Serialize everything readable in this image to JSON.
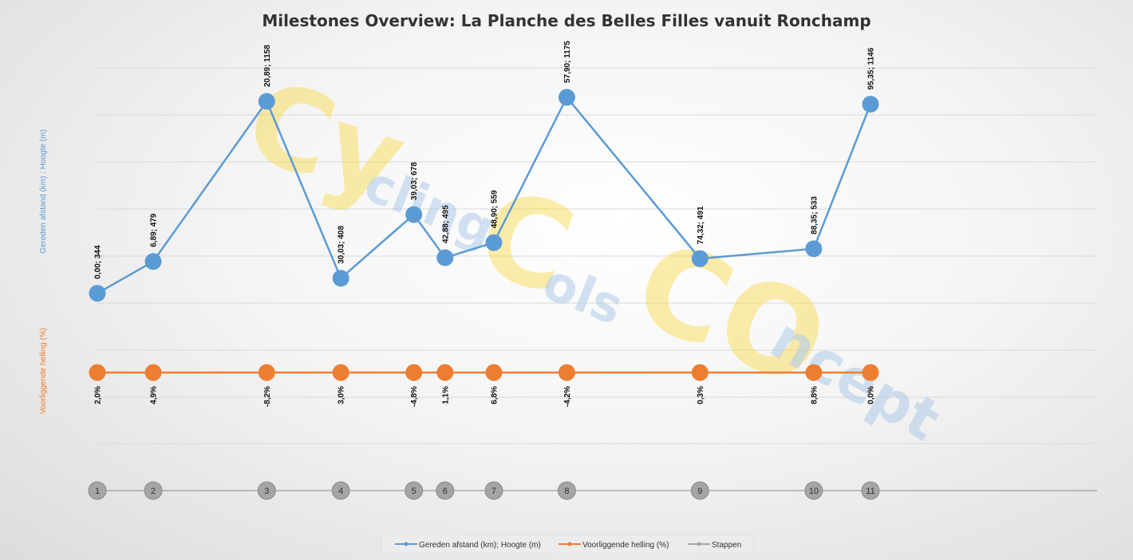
{
  "colors": {
    "elevation": "#5b9bd5",
    "gradient": "#ed7d31",
    "steps": "#a5a5a5",
    "grid": "#d9d9d9",
    "watermark_yellow": "#f7d84a",
    "watermark_blue": "#a7c6e6"
  },
  "watermark": {
    "line1": "Cy",
    "line2": "cling",
    "line3": "C",
    "line4": "ols",
    "line5": "CO",
    "line6": "ncept"
  },
  "chart_data": {
    "type": "line",
    "title": "Milestones Overview: La Planche des Belles Filles vanuit Ronchamp",
    "y_axis_label_left_top": "Gereden afstand (km) ;  Hoogte (m)",
    "y_axis_label_left_bottom": "Voorliggende helling (%)",
    "grid": true,
    "legend_position": "bottom",
    "x": [
      0.0,
      6.89,
      20.89,
      30.03,
      39.03,
      42.88,
      48.9,
      57.9,
      74.32,
      88.35,
      95.35
    ],
    "series": [
      {
        "name": "Gereden afstand (km); Hoogte (m)",
        "color": "#5b9bd5",
        "values": [
          344,
          479,
          1158,
          408,
          678,
          495,
          559,
          1175,
          491,
          533,
          1146
        ],
        "labels": [
          "0,00; 344",
          "6,89; 479",
          "20,89; 1158",
          "30,03; 408",
          "39,03; 678",
          "42,88; 495",
          "48,90; 559",
          "57,90; 1175",
          "74,32; 491",
          "88,35; 533",
          "95,35; 1146"
        ]
      },
      {
        "name": "Voorliggende helling (%)",
        "color": "#ed7d31",
        "values": [
          2.0,
          4.9,
          -8.2,
          3.0,
          -4.8,
          1.1,
          6.8,
          -4.2,
          0.3,
          8.8,
          0.0
        ],
        "labels": [
          "2,0%",
          "4,9%",
          "-8,2%",
          "3,0%",
          "-4,8%",
          "1,1%",
          "6,8%",
          "-4,2%",
          "0,3%",
          "8,8%",
          "0,0%"
        ]
      },
      {
        "name": "Stappen",
        "color": "#a5a5a5",
        "values": [
          1,
          2,
          3,
          4,
          5,
          6,
          7,
          8,
          9,
          10,
          11
        ],
        "labels": [
          "1",
          "2",
          "3",
          "4",
          "5",
          "6",
          "7",
          "8",
          "9",
          "10",
          "11"
        ]
      }
    ]
  }
}
